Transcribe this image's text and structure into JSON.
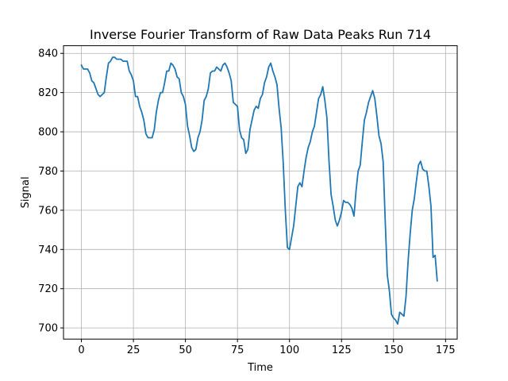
{
  "chart_data": {
    "type": "line",
    "title": "Inverse Fourier Transform of Raw Data Peaks Run 714",
    "xlabel": "Time",
    "ylabel": "Signal",
    "xlim": [
      -8.6,
      180.6
    ],
    "ylim": [
      694.3,
      843.9
    ],
    "xticks": [
      0,
      25,
      50,
      75,
      100,
      125,
      150,
      175
    ],
    "yticks": [
      700,
      720,
      740,
      760,
      780,
      800,
      820,
      840
    ],
    "grid": true,
    "series": [
      {
        "color": "#1f77b4",
        "x": [
          0,
          1,
          2,
          3,
          4,
          5,
          6,
          7,
          8,
          9,
          10,
          11,
          12,
          13,
          14,
          15,
          16,
          17,
          18,
          19,
          20,
          21,
          22,
          23,
          24,
          25,
          26,
          27,
          28,
          29,
          30,
          31,
          32,
          33,
          34,
          35,
          36,
          37,
          38,
          39,
          40,
          41,
          42,
          43,
          44,
          45,
          46,
          47,
          48,
          49,
          50,
          51,
          52,
          53,
          54,
          55,
          56,
          57,
          58,
          59,
          60,
          61,
          62,
          63,
          64,
          65,
          66,
          67,
          68,
          69,
          70,
          71,
          72,
          73,
          74,
          75,
          76,
          77,
          78,
          79,
          80,
          81,
          82,
          83,
          84,
          85,
          86,
          87,
          88,
          89,
          90,
          91,
          92,
          93,
          94,
          95,
          96,
          97,
          98,
          99,
          100,
          101,
          102,
          103,
          104,
          105,
          106,
          107,
          108,
          109,
          110,
          111,
          112,
          113,
          114,
          115,
          116,
          117,
          118,
          119,
          120,
          121,
          122,
          123,
          124,
          125,
          126,
          127,
          128,
          129,
          130,
          131,
          132,
          133,
          134,
          135,
          136,
          137,
          138,
          139,
          140,
          141,
          142,
          143,
          144,
          145,
          146,
          147,
          148,
          149,
          150,
          151,
          152,
          153,
          154,
          155,
          156,
          157,
          158,
          159,
          160,
          161,
          162,
          163,
          164,
          165,
          166,
          167,
          168,
          169,
          170,
          171
        ],
        "y": [
          834,
          832,
          832,
          832,
          830,
          826,
          825,
          822,
          819,
          818,
          819,
          820,
          828,
          835,
          836,
          838,
          838,
          837,
          837,
          837,
          836,
          836,
          836,
          831,
          829,
          826,
          818,
          818,
          813,
          810,
          806,
          799,
          797,
          797,
          797,
          801,
          810,
          816,
          820,
          820,
          825,
          831,
          831,
          835,
          834,
          832,
          828,
          827,
          820,
          818,
          814,
          803,
          798,
          792,
          790,
          791,
          797,
          800,
          806,
          816,
          818,
          822,
          830,
          831,
          831,
          833,
          832,
          831,
          834,
          835,
          833,
          830,
          826,
          815,
          814,
          813,
          801,
          797,
          796,
          789,
          791,
          801,
          806,
          811,
          813,
          812,
          817,
          819,
          825,
          828,
          833,
          835,
          831,
          828,
          824,
          812,
          802,
          784,
          760,
          741,
          740,
          746,
          752,
          762,
          772,
          774,
          772,
          780,
          787,
          792,
          795,
          800,
          803,
          810,
          817,
          819,
          823,
          816,
          807,
          785,
          768,
          762,
          755,
          752,
          755,
          759,
          765,
          764,
          764,
          763,
          761,
          757,
          770,
          780,
          783,
          795,
          806,
          810,
          815,
          818,
          821,
          817,
          808,
          798,
          794,
          785,
          755,
          727,
          719,
          707,
          705,
          704,
          702,
          708,
          707,
          706,
          716,
          734,
          748,
          760,
          766,
          775,
          783,
          785,
          781,
          780,
          780,
          772,
          762,
          736,
          737,
          724
        ]
      }
    ]
  }
}
